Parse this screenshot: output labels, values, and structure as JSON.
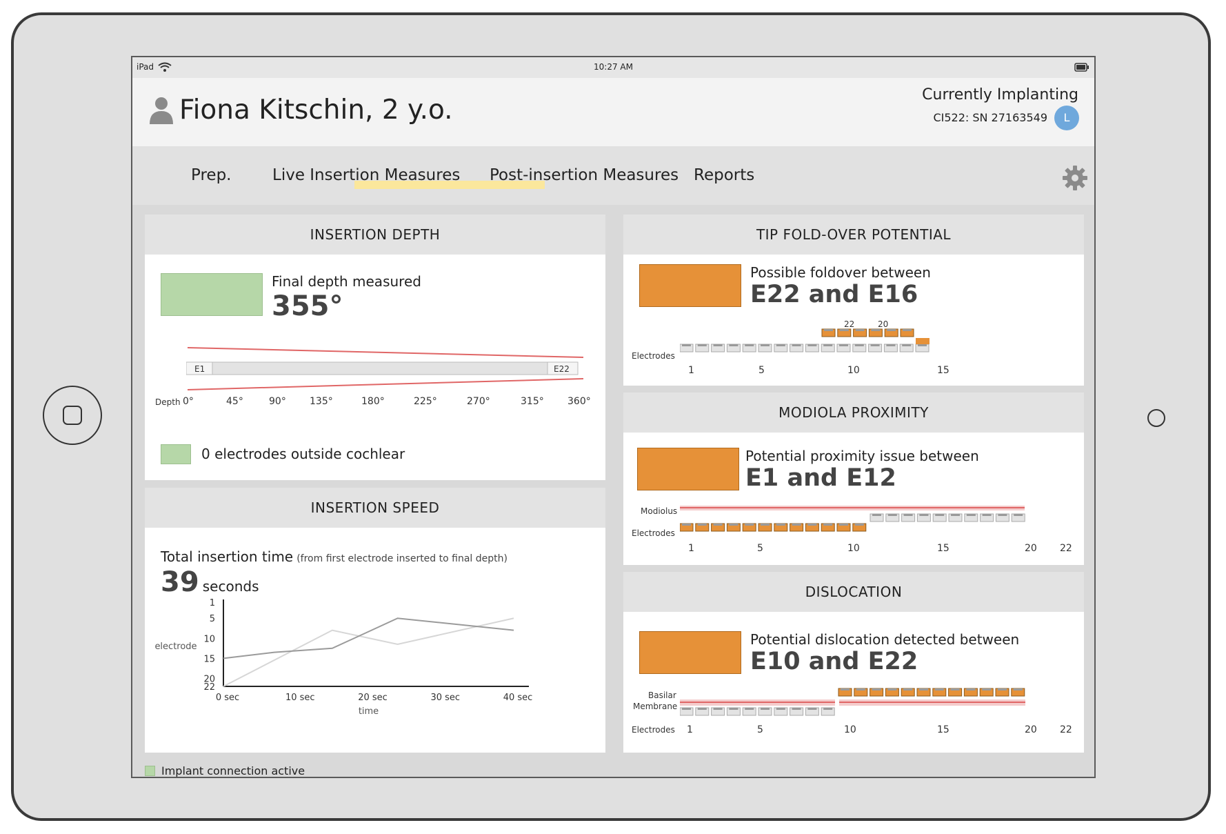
{
  "statusbar": {
    "device": "iPad",
    "time": "10:27 AM"
  },
  "header": {
    "patient_name": "Fiona Kitschin, 2 y.o.",
    "implant_status": "Currently Implanting",
    "implant_id": "CI522: SN 27163549",
    "avatar_initial": "L"
  },
  "nav": {
    "tabs": [
      {
        "label": "Prep."
      },
      {
        "label": "Live Insertion Measures"
      },
      {
        "label": "Post-insertion Measures",
        "active": true
      },
      {
        "label": "Reports"
      }
    ]
  },
  "insertion_depth": {
    "title": "INSERTION DEPTH",
    "final_label": "Final depth measured",
    "final_value": "355°",
    "start_electrode": "E1",
    "end_electrode": "E22",
    "depth_label": "Depth",
    "depth_ticks": [
      "0°",
      "45°",
      "90°",
      "135°",
      "180°",
      "225°",
      "270°",
      "315°",
      "360°"
    ],
    "outside_label": "0 electrodes outside cochlear"
  },
  "insertion_speed": {
    "title": "INSERTION SPEED",
    "total_label": "Total insertion time",
    "total_note": "(from first electrode inserted to final depth)",
    "total_value": "39",
    "total_unit": "seconds"
  },
  "chart_data": {
    "type": "line",
    "xlabel": "time",
    "ylabel": "electrode",
    "x_ticks": [
      "0 sec",
      "10 sec",
      "20 sec",
      "30 sec",
      "40 sec"
    ],
    "y_ticks": [
      "1",
      "5",
      "10",
      "15",
      "20",
      "22"
    ],
    "xlim": [
      0,
      40
    ],
    "series": [
      {
        "x": [
          0,
          7,
          15,
          24,
          40
        ],
        "y": [
          15,
          13.5,
          12.5,
          5,
          8
        ],
        "color": "#9a9a9a"
      },
      {
        "x": [
          0,
          15,
          24,
          40
        ],
        "y": [
          22,
          8,
          11.5,
          5
        ],
        "color": "#d6d6d6"
      }
    ]
  },
  "tip_foldover": {
    "title": "TIP FOLD-OVER POTENTIAL",
    "text": "Possible foldover between",
    "value": "E22 and E16",
    "electrodes_label": "Electrodes",
    "top_labels": [
      "22",
      "20"
    ],
    "ticks": [
      "1",
      "5",
      "10",
      "15"
    ]
  },
  "modiola": {
    "title": "MODIOLA PROXIMITY",
    "text": "Potential proximity issue between",
    "value": "E1 and E12",
    "modiolus_label": "Modiolus",
    "electrodes_label": "Electrodes",
    "ticks": [
      "1",
      "5",
      "10",
      "15",
      "20",
      "22"
    ]
  },
  "dislocation": {
    "title": "DISLOCATION",
    "text": "Potential dislocation detected between",
    "value": "E10 and E22",
    "basilar_label": "Basilar",
    "membrane_label": "Membrane",
    "electrodes_label": "Electrodes",
    "ticks": [
      "1",
      "5",
      "10",
      "15",
      "20",
      "22"
    ]
  },
  "footer": {
    "status": "Implant connection active"
  },
  "colors": {
    "orange": "#e69138",
    "green": "#b6d7a8",
    "red": "#e06666",
    "highlight": "#fbe79c"
  }
}
